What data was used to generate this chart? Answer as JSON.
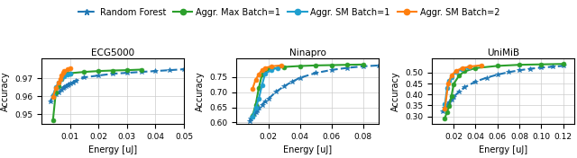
{
  "legend_labels": [
    "Random Forest",
    "Aggr. Max Batch=1",
    "Aggr. SM Batch=1",
    "Aggr. SM Batch=2"
  ],
  "legend_colors": [
    "#1f77b4",
    "#2ca02c",
    "#1f9fcf",
    "#ff7f0e"
  ],
  "legend_styles": [
    "--",
    "-",
    "-",
    "-"
  ],
  "legend_markers": [
    "*",
    "o",
    "o",
    "o"
  ],
  "subplots": [
    {
      "title": "ECG5000",
      "xlabel": "Energy [uJ]",
      "ylabel": "Accuracy",
      "xlim": [
        0,
        0.05
      ],
      "ylim": [
        0.9445,
        0.981
      ],
      "yticks": [
        0.95,
        0.96,
        0.97
      ],
      "xticks": [
        0.01,
        0.02,
        0.03,
        0.04,
        0.05
      ],
      "series": [
        {
          "label": "Random Forest",
          "color": "#1f77b4",
          "linestyle": "--",
          "marker": "*",
          "markersize": 4,
          "linewidth": 1.5,
          "x": [
            0.003,
            0.004,
            0.005,
            0.006,
            0.007,
            0.0075,
            0.008,
            0.0085,
            0.009,
            0.0095,
            0.01,
            0.011,
            0.012,
            0.015,
            0.02,
            0.025,
            0.03,
            0.035,
            0.04,
            0.045,
            0.05
          ],
          "y": [
            0.957,
            0.96,
            0.961,
            0.962,
            0.9635,
            0.9645,
            0.965,
            0.9655,
            0.966,
            0.9665,
            0.967,
            0.9678,
            0.9685,
            0.9705,
            0.9715,
            0.9725,
            0.973,
            0.9735,
            0.974,
            0.9745,
            0.975
          ]
        },
        {
          "label": "Aggr. Max Batch=1",
          "color": "#2ca02c",
          "linestyle": "-",
          "marker": "o",
          "markersize": 3.5,
          "linewidth": 1.5,
          "x": [
            0.004,
            0.005,
            0.006,
            0.007,
            0.008,
            0.009,
            0.01,
            0.015,
            0.02,
            0.025,
            0.03,
            0.035
          ],
          "y": [
            0.9465,
            0.962,
            0.9655,
            0.9695,
            0.972,
            0.9725,
            0.9728,
            0.9735,
            0.974,
            0.9743,
            0.9745,
            0.9748
          ]
        },
        {
          "label": "Aggr. SM Batch=1",
          "color": "#1f9fcf",
          "linestyle": "-",
          "marker": "o",
          "markersize": 3.5,
          "linewidth": 1.5,
          "x": [
            0.004,
            0.005,
            0.006,
            0.007,
            0.008,
            0.009,
            0.01
          ],
          "y": [
            0.9605,
            0.965,
            0.9675,
            0.9695,
            0.971,
            0.972,
            0.9725
          ]
        },
        {
          "label": "Aggr. SM Batch=2",
          "color": "#ff7f0e",
          "linestyle": "-",
          "marker": "o",
          "markersize": 3.5,
          "linewidth": 1.5,
          "x": [
            0.004,
            0.005,
            0.006,
            0.0065,
            0.007,
            0.0075,
            0.008,
            0.009,
            0.01
          ],
          "y": [
            0.9595,
            0.9645,
            0.9675,
            0.9695,
            0.9715,
            0.973,
            0.974,
            0.975,
            0.9755
          ]
        }
      ]
    },
    {
      "title": "Ninapro",
      "xlabel": "Energy [uJ]",
      "ylabel": "Accuracy",
      "xlim": [
        0,
        0.09
      ],
      "ylim": [
        0.595,
        0.812
      ],
      "yticks": [
        0.6,
        0.65,
        0.7,
        0.75
      ],
      "xticks": [
        0.02,
        0.04,
        0.06,
        0.08
      ],
      "series": [
        {
          "label": "Random Forest",
          "color": "#1f77b4",
          "linestyle": "--",
          "marker": "*",
          "markersize": 4,
          "linewidth": 1.5,
          "x": [
            0.008,
            0.009,
            0.01,
            0.011,
            0.012,
            0.013,
            0.014,
            0.016,
            0.018,
            0.02,
            0.025,
            0.03,
            0.035,
            0.04,
            0.05,
            0.06,
            0.07,
            0.08,
            0.09
          ],
          "y": [
            0.605,
            0.612,
            0.619,
            0.627,
            0.634,
            0.641,
            0.648,
            0.659,
            0.669,
            0.678,
            0.702,
            0.72,
            0.735,
            0.748,
            0.764,
            0.774,
            0.781,
            0.786,
            0.789
          ]
        },
        {
          "label": "Aggr. Max Batch=1",
          "color": "#2ca02c",
          "linestyle": "-",
          "marker": "o",
          "markersize": 3.5,
          "linewidth": 1.5,
          "x": [
            0.01,
            0.012,
            0.014,
            0.016,
            0.02,
            0.03,
            0.04,
            0.05,
            0.06,
            0.07,
            0.08
          ],
          "y": [
            0.621,
            0.658,
            0.714,
            0.758,
            0.776,
            0.784,
            0.787,
            0.789,
            0.79,
            0.791,
            0.792
          ]
        },
        {
          "label": "Aggr. SM Batch=1",
          "color": "#1f9fcf",
          "linestyle": "-",
          "marker": "o",
          "markersize": 3.5,
          "linewidth": 1.5,
          "x": [
            0.01,
            0.012,
            0.014,
            0.016,
            0.018,
            0.022,
            0.026
          ],
          "y": [
            0.619,
            0.648,
            0.679,
            0.723,
            0.761,
            0.775,
            0.781
          ]
        },
        {
          "label": "Aggr. SM Batch=2",
          "color": "#ff7f0e",
          "linestyle": "-",
          "marker": "o",
          "markersize": 3.5,
          "linewidth": 1.5,
          "x": [
            0.01,
            0.012,
            0.014,
            0.016,
            0.018,
            0.022,
            0.028
          ],
          "y": [
            0.711,
            0.742,
            0.759,
            0.774,
            0.781,
            0.786,
            0.789
          ]
        }
      ]
    },
    {
      "title": "UniMiB",
      "xlabel": "Energy [uJ]",
      "ylabel": "Accuracy",
      "xlim": [
        0,
        0.13
      ],
      "ylim": [
        0.265,
        0.565
      ],
      "yticks": [
        0.3,
        0.35,
        0.4,
        0.45,
        0.5
      ],
      "xticks": [
        0.02,
        0.04,
        0.06,
        0.08,
        0.1,
        0.12
      ],
      "series": [
        {
          "label": "Random Forest",
          "color": "#1f77b4",
          "linestyle": "--",
          "marker": "*",
          "markersize": 4,
          "linewidth": 1.5,
          "x": [
            0.01,
            0.012,
            0.014,
            0.016,
            0.018,
            0.02,
            0.025,
            0.03,
            0.04,
            0.05,
            0.06,
            0.07,
            0.08,
            0.09,
            0.1,
            0.11,
            0.12
          ],
          "y": [
            0.322,
            0.338,
            0.352,
            0.366,
            0.378,
            0.389,
            0.413,
            0.433,
            0.459,
            0.477,
            0.491,
            0.502,
            0.511,
            0.518,
            0.523,
            0.527,
            0.531
          ]
        },
        {
          "label": "Aggr. Max Batch=1",
          "color": "#2ca02c",
          "linestyle": "-",
          "marker": "o",
          "markersize": 3.5,
          "linewidth": 1.5,
          "x": [
            0.012,
            0.014,
            0.016,
            0.018,
            0.02,
            0.025,
            0.03,
            0.04,
            0.06,
            0.08,
            0.1,
            0.12
          ],
          "y": [
            0.292,
            0.321,
            0.349,
            0.391,
            0.448,
            0.487,
            0.506,
            0.521,
            0.531,
            0.536,
            0.538,
            0.54
          ]
        },
        {
          "label": "Aggr. SM Batch=1",
          "color": "#1f9fcf",
          "linestyle": "-",
          "marker": "o",
          "markersize": 3.5,
          "linewidth": 1.5,
          "x": [
            0.012,
            0.014,
            0.016,
            0.018,
            0.022,
            0.027,
            0.034
          ],
          "y": [
            0.354,
            0.428,
            0.462,
            0.481,
            0.502,
            0.516,
            0.524
          ]
        },
        {
          "label": "Aggr. SM Batch=2",
          "color": "#ff7f0e",
          "linestyle": "-",
          "marker": "o",
          "markersize": 3.5,
          "linewidth": 1.5,
          "x": [
            0.012,
            0.015,
            0.018,
            0.022,
            0.028,
            0.035,
            0.045
          ],
          "y": [
            0.335,
            0.449,
            0.487,
            0.508,
            0.521,
            0.528,
            0.534
          ]
        }
      ]
    }
  ]
}
